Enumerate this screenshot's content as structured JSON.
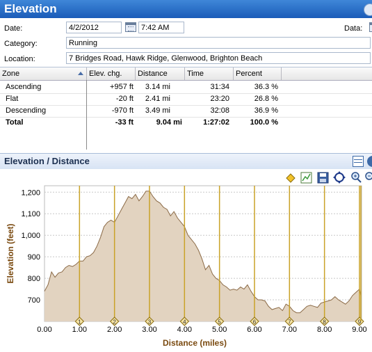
{
  "title": "Elevation",
  "form": {
    "date_label": "Date:",
    "date_value": "4/2/2012",
    "time_value": "7:42 AM",
    "data_label": "Data:",
    "category_label": "Category:",
    "category_value": "Running",
    "location_label": "Location:",
    "location_value": "7 Bridges Road, Hawk Ridge, Glenwood, Brighton Beach"
  },
  "table": {
    "headers": [
      "Zone",
      "Elev. chg.",
      "Distance",
      "Time",
      "Percent"
    ],
    "rows": [
      [
        "Ascending",
        "+957 ft",
        "3.14 mi",
        "31:34",
        "36.3 %"
      ],
      [
        "Flat",
        "-20 ft",
        "2.41 mi",
        "23:20",
        "26.8 %"
      ],
      [
        "Descending",
        "-970 ft",
        "3.49 mi",
        "32:08",
        "36.9 %"
      ],
      [
        "Total",
        "-33 ft",
        "9.04 mi",
        "1:27:02",
        "100.0 %"
      ]
    ]
  },
  "chart_panel": {
    "title": "Elevation / Distance",
    "toolbar_icons": [
      "marker-icon",
      "chart-icon",
      "save-icon",
      "fit-icon",
      "zoom-in-icon",
      "zoom-out-icon"
    ]
  },
  "chart_data": {
    "type": "area",
    "xlabel": "Distance (miles)",
    "ylabel": "Elevation (feet)",
    "xlim": [
      0,
      9.06
    ],
    "ylim": [
      600,
      1230
    ],
    "xticks": [
      "0.00",
      "1.00",
      "2.00",
      "3.00",
      "4.00",
      "5.00",
      "6.00",
      "7.00",
      "8.00",
      "9.00"
    ],
    "xtick_values": [
      0,
      1,
      2,
      3,
      4,
      5,
      6,
      7,
      8,
      9
    ],
    "yticks": [
      "700",
      "800",
      "900",
      "1,000",
      "1,100",
      "1,200"
    ],
    "ytick_values": [
      700,
      800,
      900,
      1000,
      1100,
      1200
    ],
    "mile_markers": [
      "1",
      "2",
      "3",
      "4",
      "5",
      "6",
      "7",
      "8",
      "9"
    ],
    "mile_marker_values": [
      1,
      2,
      3,
      4,
      5,
      6,
      7,
      8,
      9
    ],
    "grid": true,
    "fill_color": "#e2d3c0",
    "line_color": "#8b6a46",
    "marker_color": "#c9a227",
    "x": [
      0,
      0.1,
      0.2,
      0.3,
      0.4,
      0.5,
      0.6,
      0.7,
      0.8,
      0.9,
      1.0,
      1.1,
      1.2,
      1.3,
      1.4,
      1.5,
      1.6,
      1.7,
      1.8,
      1.9,
      2.0,
      2.1,
      2.2,
      2.3,
      2.4,
      2.5,
      2.6,
      2.7,
      2.8,
      2.9,
      3.0,
      3.1,
      3.2,
      3.3,
      3.4,
      3.5,
      3.6,
      3.7,
      3.8,
      3.9,
      4.0,
      4.1,
      4.2,
      4.3,
      4.4,
      4.5,
      4.6,
      4.7,
      4.8,
      4.9,
      5.0,
      5.1,
      5.2,
      5.3,
      5.4,
      5.5,
      5.6,
      5.7,
      5.8,
      5.9,
      6.0,
      6.1,
      6.2,
      6.3,
      6.4,
      6.5,
      6.6,
      6.7,
      6.8,
      6.9,
      7.0,
      7.1,
      7.2,
      7.3,
      7.4,
      7.5,
      7.6,
      7.7,
      7.8,
      7.9,
      8.0,
      8.1,
      8.2,
      8.3,
      8.4,
      8.5,
      8.6,
      8.7,
      8.8,
      8.9,
      9.0,
      9.04
    ],
    "y": [
      740,
      770,
      830,
      805,
      825,
      830,
      850,
      860,
      855,
      865,
      880,
      880,
      900,
      905,
      920,
      950,
      990,
      1040,
      1060,
      1070,
      1060,
      1090,
      1120,
      1150,
      1180,
      1170,
      1190,
      1160,
      1180,
      1205,
      1205,
      1180,
      1160,
      1150,
      1130,
      1120,
      1090,
      1110,
      1080,
      1060,
      1040,
      1000,
      980,
      960,
      930,
      890,
      840,
      860,
      820,
      800,
      790,
      770,
      760,
      745,
      750,
      745,
      760,
      750,
      770,
      740,
      715,
      700,
      700,
      695,
      670,
      655,
      660,
      665,
      650,
      680,
      670,
      650,
      640,
      640,
      655,
      670,
      675,
      670,
      665,
      685,
      690,
      695,
      700,
      715,
      700,
      690,
      680,
      695,
      720,
      735,
      750,
      720
    ]
  }
}
